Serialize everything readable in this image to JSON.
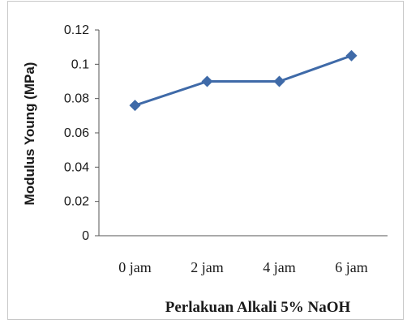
{
  "chart_data": {
    "type": "line",
    "categories": [
      "0 jam",
      "2 jam",
      "4 jam",
      "6 jam"
    ],
    "series": [
      {
        "values": [
          0.076,
          0.09,
          0.09,
          0.105
        ]
      }
    ],
    "xlabel": "Perlakuan Alkali 5% NaOH",
    "ylabel": "Modulus Young (MPa)",
    "ylim": [
      0,
      0.12
    ],
    "yticks": [
      "0",
      "0.02",
      "0.04",
      "0.06",
      "0.08",
      "0.1",
      "0.12"
    ],
    "grid": false,
    "legend": "none",
    "line_color": "#3f6aa8"
  }
}
